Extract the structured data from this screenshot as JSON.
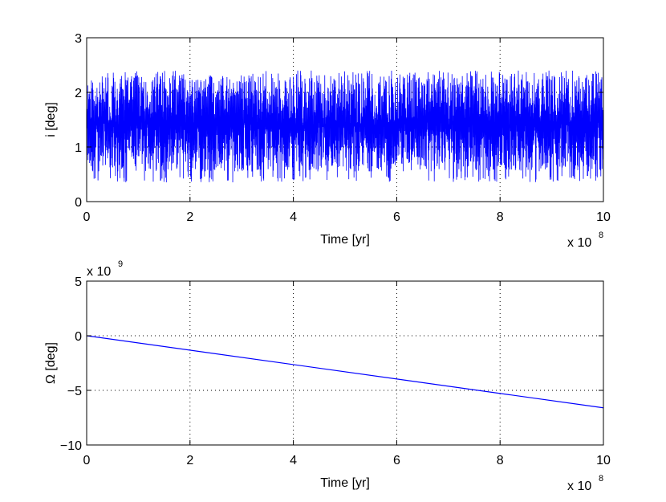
{
  "chart_data": [
    {
      "type": "line",
      "xlabel": "Time [yr]",
      "ylabel": "i [deg]",
      "x_multiplier": {
        "base": "x 10",
        "exponent": "8"
      },
      "xlim": [
        0,
        10
      ],
      "ylim": [
        0,
        3
      ],
      "x_ticks": [
        "0",
        "2",
        "4",
        "6",
        "8",
        "10"
      ],
      "y_ticks": [
        "0",
        "1",
        "2",
        "3"
      ],
      "grid": true,
      "line_color": "#0000ff",
      "series": [
        {
          "x_range": [
            0,
            10
          ],
          "center": 1.4,
          "envelope_low": 0.35,
          "envelope_high": 2.4,
          "typical_low": 0.55,
          "typical_high": 2.3
        }
      ]
    },
    {
      "type": "line",
      "xlabel": "Time [yr]",
      "ylabel": "Ω [deg]",
      "x_multiplier": {
        "base": "x 10",
        "exponent": "8"
      },
      "y_multiplier": {
        "base": "x 10",
        "exponent": "9"
      },
      "xlim": [
        0,
        10
      ],
      "ylim": [
        -10,
        5
      ],
      "x_ticks": [
        "0",
        "2",
        "4",
        "6",
        "8",
        "10"
      ],
      "y_ticks": [
        "-10",
        "-5",
        "0",
        "5"
      ],
      "grid": true,
      "line_color": "#0000ff",
      "series": [
        {
          "x": [
            0,
            10
          ],
          "y": [
            0,
            -6.6
          ]
        }
      ]
    }
  ]
}
